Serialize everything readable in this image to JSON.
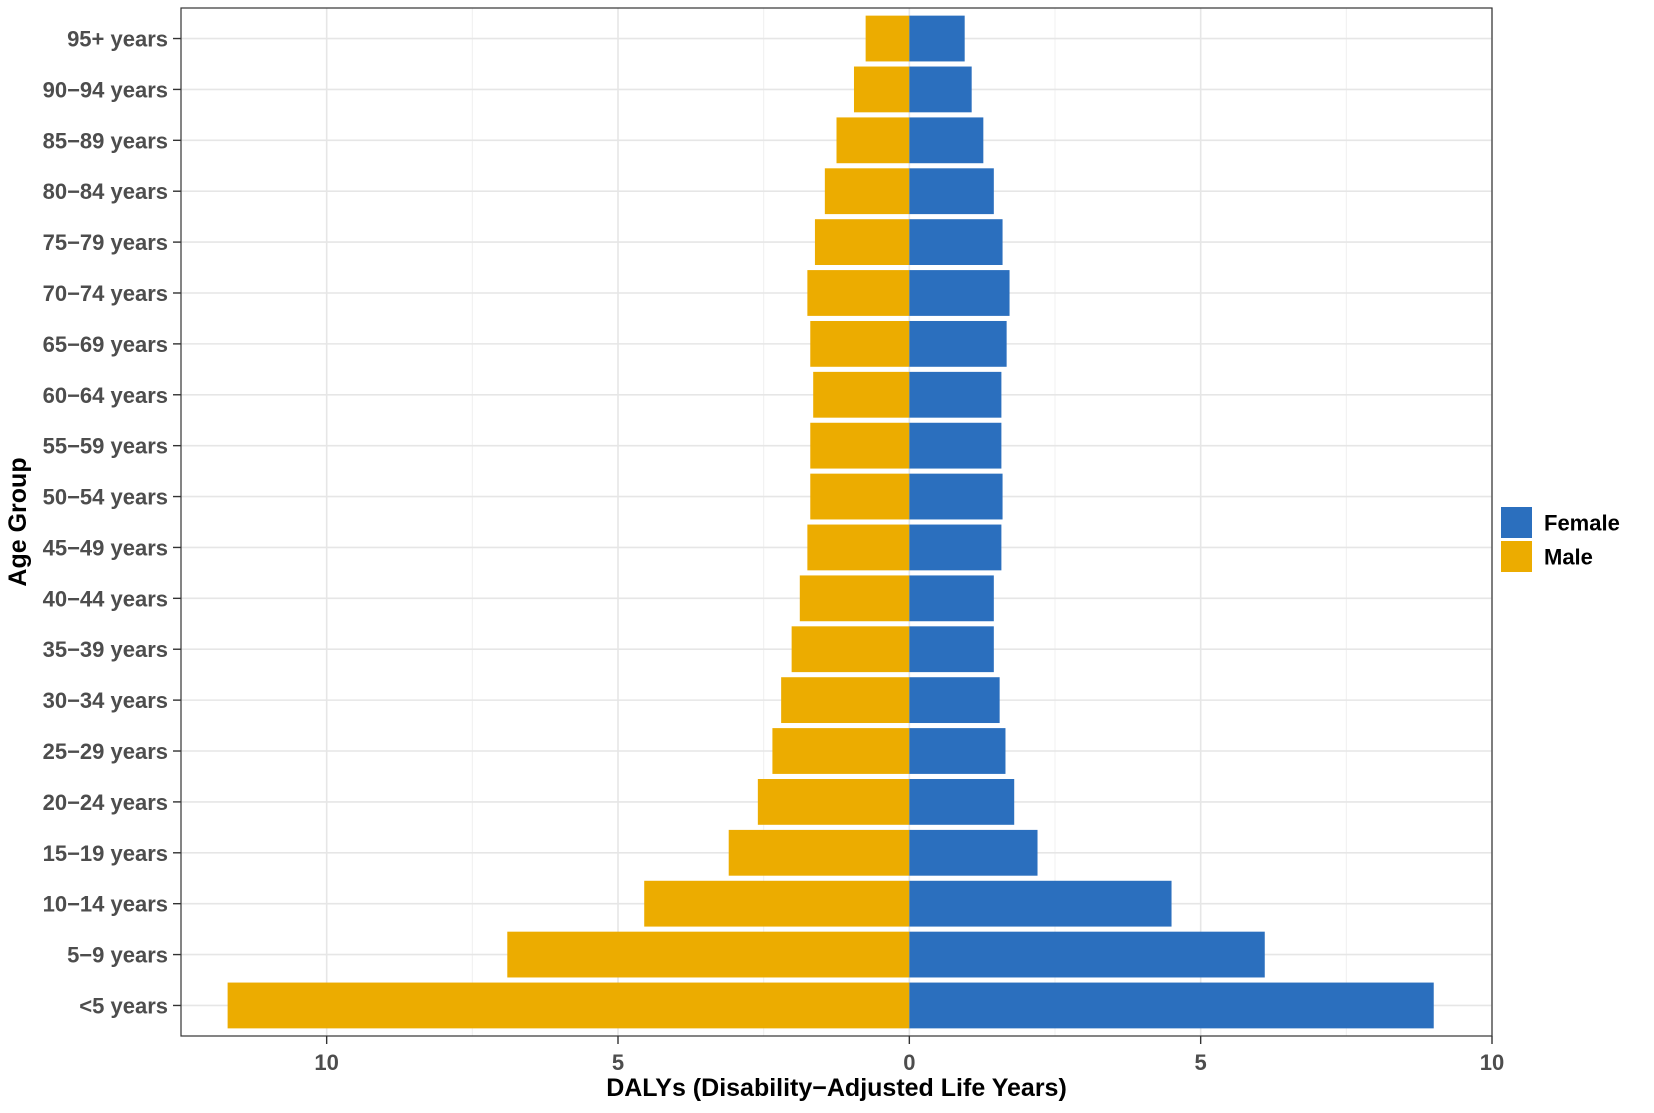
{
  "chart_data": {
    "type": "bar",
    "orientation": "horizontal",
    "layout": "diverging-pyramid",
    "xlabel": "DALYs (Disability−Adjusted Life Years)",
    "ylabel": "Age Group",
    "xlim": [
      -12.5,
      10
    ],
    "x_ticks": [
      -10,
      -5,
      0,
      5,
      10
    ],
    "x_tick_labels": [
      "10",
      "5",
      "0",
      "5",
      "10"
    ],
    "grid": true,
    "legend_position": "right",
    "categories": [
      "<5 years",
      "5−9 years",
      "10−14 years",
      "15−19 years",
      "20−24 years",
      "25−29 years",
      "30−34 years",
      "35−39 years",
      "40−44 years",
      "45−49 years",
      "50−54 years",
      "55−59 years",
      "60−64 years",
      "65−69 years",
      "70−74 years",
      "75−79 years",
      "80−84 years",
      "85−89 years",
      "90−94 years",
      "95+ years"
    ],
    "series": [
      {
        "name": "Female",
        "color": "#2b6fbe",
        "values": [
          9.0,
          6.1,
          4.5,
          2.2,
          1.8,
          1.65,
          1.55,
          1.45,
          1.45,
          1.58,
          1.6,
          1.58,
          1.58,
          1.67,
          1.72,
          1.6,
          1.45,
          1.27,
          1.07,
          0.95
        ]
      },
      {
        "name": "Male",
        "color": "#ecac00",
        "values": [
          11.7,
          6.9,
          4.55,
          3.1,
          2.6,
          2.35,
          2.2,
          2.02,
          1.88,
          1.75,
          1.7,
          1.7,
          1.65,
          1.7,
          1.75,
          1.62,
          1.45,
          1.25,
          0.95,
          0.75
        ]
      }
    ]
  }
}
